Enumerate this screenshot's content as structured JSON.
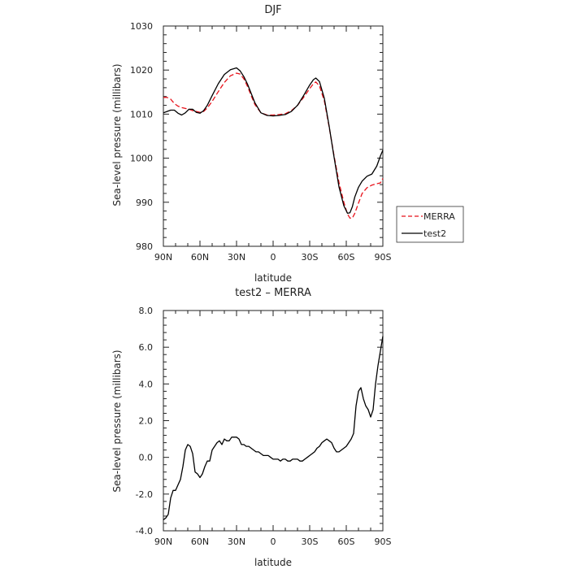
{
  "chart_data": [
    {
      "type": "line",
      "title": "DJF",
      "xlabel": "latitude",
      "ylabel": "Sea-level pressure (millibars)",
      "xlim": [
        90,
        -90
      ],
      "ylim": [
        980,
        1030
      ],
      "x_ticks": [
        "90N",
        "60N",
        "30N",
        "0",
        "30S",
        "60S",
        "90S"
      ],
      "y_ticks": [
        "980",
        "990",
        "1000",
        "1010",
        "1020",
        "1030"
      ],
      "legend_position": "outside-right",
      "series": [
        {
          "name": "MERRA",
          "color": "#e8111a",
          "dash": "dashed",
          "x": [
            90,
            87,
            84,
            81,
            78,
            75,
            72,
            69,
            66,
            63,
            60,
            57,
            54,
            50,
            45,
            40,
            35,
            30,
            27,
            24,
            21,
            18,
            15,
            10,
            5,
            0,
            -5,
            -10,
            -15,
            -20,
            -25,
            -30,
            -33,
            -35,
            -38,
            -42,
            -46,
            -50,
            -54,
            -58,
            -61,
            -63,
            -65,
            -67,
            -70,
            -73,
            -77,
            -81,
            -85,
            -88,
            -90
          ],
          "y": [
            1013.8,
            1013.8,
            1013.4,
            1012.4,
            1011.8,
            1011.5,
            1011.3,
            1011.1,
            1010.8,
            1010.6,
            1010.4,
            1010.6,
            1011.4,
            1012.9,
            1015.1,
            1017.2,
            1018.7,
            1019.3,
            1019.1,
            1018.0,
            1016.3,
            1014.2,
            1012.2,
            1010.3,
            1009.8,
            1009.8,
            1009.9,
            1010.1,
            1010.8,
            1012.0,
            1013.8,
            1015.8,
            1016.9,
            1017.3,
            1016.4,
            1013.0,
            1007.0,
            1000.5,
            994.5,
            990.0,
            987.3,
            986.4,
            986.4,
            987.5,
            989.8,
            992.0,
            993.3,
            993.9,
            994.2,
            994.4,
            995.4
          ]
        },
        {
          "name": "test2",
          "color": "#000000",
          "dash": "solid",
          "x": [
            90,
            87,
            84,
            81,
            78,
            75,
            72,
            69,
            66,
            63,
            60,
            57,
            54,
            50,
            45,
            40,
            35,
            30,
            27,
            24,
            21,
            18,
            15,
            10,
            5,
            0,
            -5,
            -10,
            -15,
            -20,
            -25,
            -30,
            -33,
            -35,
            -38,
            -42,
            -46,
            -50,
            -54,
            -58,
            -61,
            -63,
            -65,
            -67,
            -70,
            -73,
            -77,
            -81,
            -85,
            -88,
            -90
          ],
          "y": [
            1010.3,
            1010.6,
            1010.9,
            1010.9,
            1010.2,
            1009.8,
            1010.3,
            1011.1,
            1011.1,
            1010.4,
            1010.2,
            1010.8,
            1012.0,
            1014.2,
            1016.9,
            1019.0,
            1020.1,
            1020.5,
            1019.8,
            1018.5,
            1016.8,
            1014.7,
            1012.6,
            1010.3,
            1009.7,
            1009.6,
            1009.7,
            1009.9,
            1010.6,
            1012.0,
            1014.2,
            1016.6,
            1017.8,
            1018.2,
            1017.4,
            1013.6,
            1007.2,
            1000.2,
            993.5,
            989.2,
            987.5,
            987.6,
            989.0,
            991.2,
            993.4,
            994.8,
            995.9,
            996.4,
            998.2,
            1000.5,
            1001.8
          ]
        }
      ]
    },
    {
      "type": "line",
      "title": "test2 – MERRA",
      "xlabel": "latitude",
      "ylabel": "Sea-level pressure (millibars)",
      "xlim": [
        90,
        -90
      ],
      "ylim": [
        -4,
        8
      ],
      "x_ticks": [
        "90N",
        "60N",
        "30N",
        "0",
        "30S",
        "60S",
        "90S"
      ],
      "y_ticks": [
        "-4.0",
        "-2.0",
        "0.0",
        "2.0",
        "4.0",
        "6.0",
        "8.0"
      ],
      "series": [
        {
          "color": "#000000",
          "dash": "solid",
          "x": [
            90,
            88,
            86,
            84,
            82,
            80,
            78,
            76,
            74,
            72,
            70,
            68,
            66,
            64,
            62,
            60,
            58,
            56,
            54,
            52,
            50,
            48,
            46,
            44,
            42,
            40,
            38,
            36,
            34,
            32,
            30,
            28,
            26,
            24,
            22,
            20,
            18,
            16,
            14,
            12,
            10,
            8,
            6,
            4,
            2,
            0,
            -2,
            -4,
            -6,
            -8,
            -10,
            -12,
            -14,
            -16,
            -18,
            -20,
            -22,
            -24,
            -26,
            -28,
            -30,
            -32,
            -34,
            -36,
            -38,
            -40,
            -42,
            -44,
            -46,
            -48,
            -50,
            -52,
            -54,
            -56,
            -58,
            -60,
            -62,
            -64,
            -66,
            -68,
            -70,
            -72,
            -74,
            -76,
            -78,
            -80,
            -82,
            -84,
            -86,
            -88,
            -90
          ],
          "y": [
            -3.4,
            -3.3,
            -3.1,
            -2.2,
            -1.8,
            -1.8,
            -1.5,
            -1.2,
            -0.5,
            0.4,
            0.7,
            0.6,
            0.2,
            -0.8,
            -0.9,
            -1.1,
            -0.9,
            -0.5,
            -0.2,
            -0.2,
            0.4,
            0.6,
            0.8,
            0.9,
            0.7,
            1.0,
            0.9,
            0.9,
            1.1,
            1.1,
            1.1,
            1.0,
            0.7,
            0.7,
            0.6,
            0.6,
            0.5,
            0.4,
            0.3,
            0.3,
            0.2,
            0.1,
            0.1,
            0.1,
            0.0,
            -0.1,
            -0.1,
            -0.1,
            -0.2,
            -0.1,
            -0.1,
            -0.2,
            -0.2,
            -0.1,
            -0.1,
            -0.1,
            -0.2,
            -0.2,
            -0.1,
            0.0,
            0.1,
            0.2,
            0.3,
            0.5,
            0.6,
            0.8,
            0.9,
            1.0,
            0.9,
            0.8,
            0.5,
            0.3,
            0.3,
            0.4,
            0.5,
            0.6,
            0.8,
            1.0,
            1.3,
            2.8,
            3.6,
            3.8,
            3.2,
            2.8,
            2.6,
            2.2,
            2.6,
            4.0,
            5.0,
            5.8,
            6.6
          ]
        }
      ]
    }
  ]
}
